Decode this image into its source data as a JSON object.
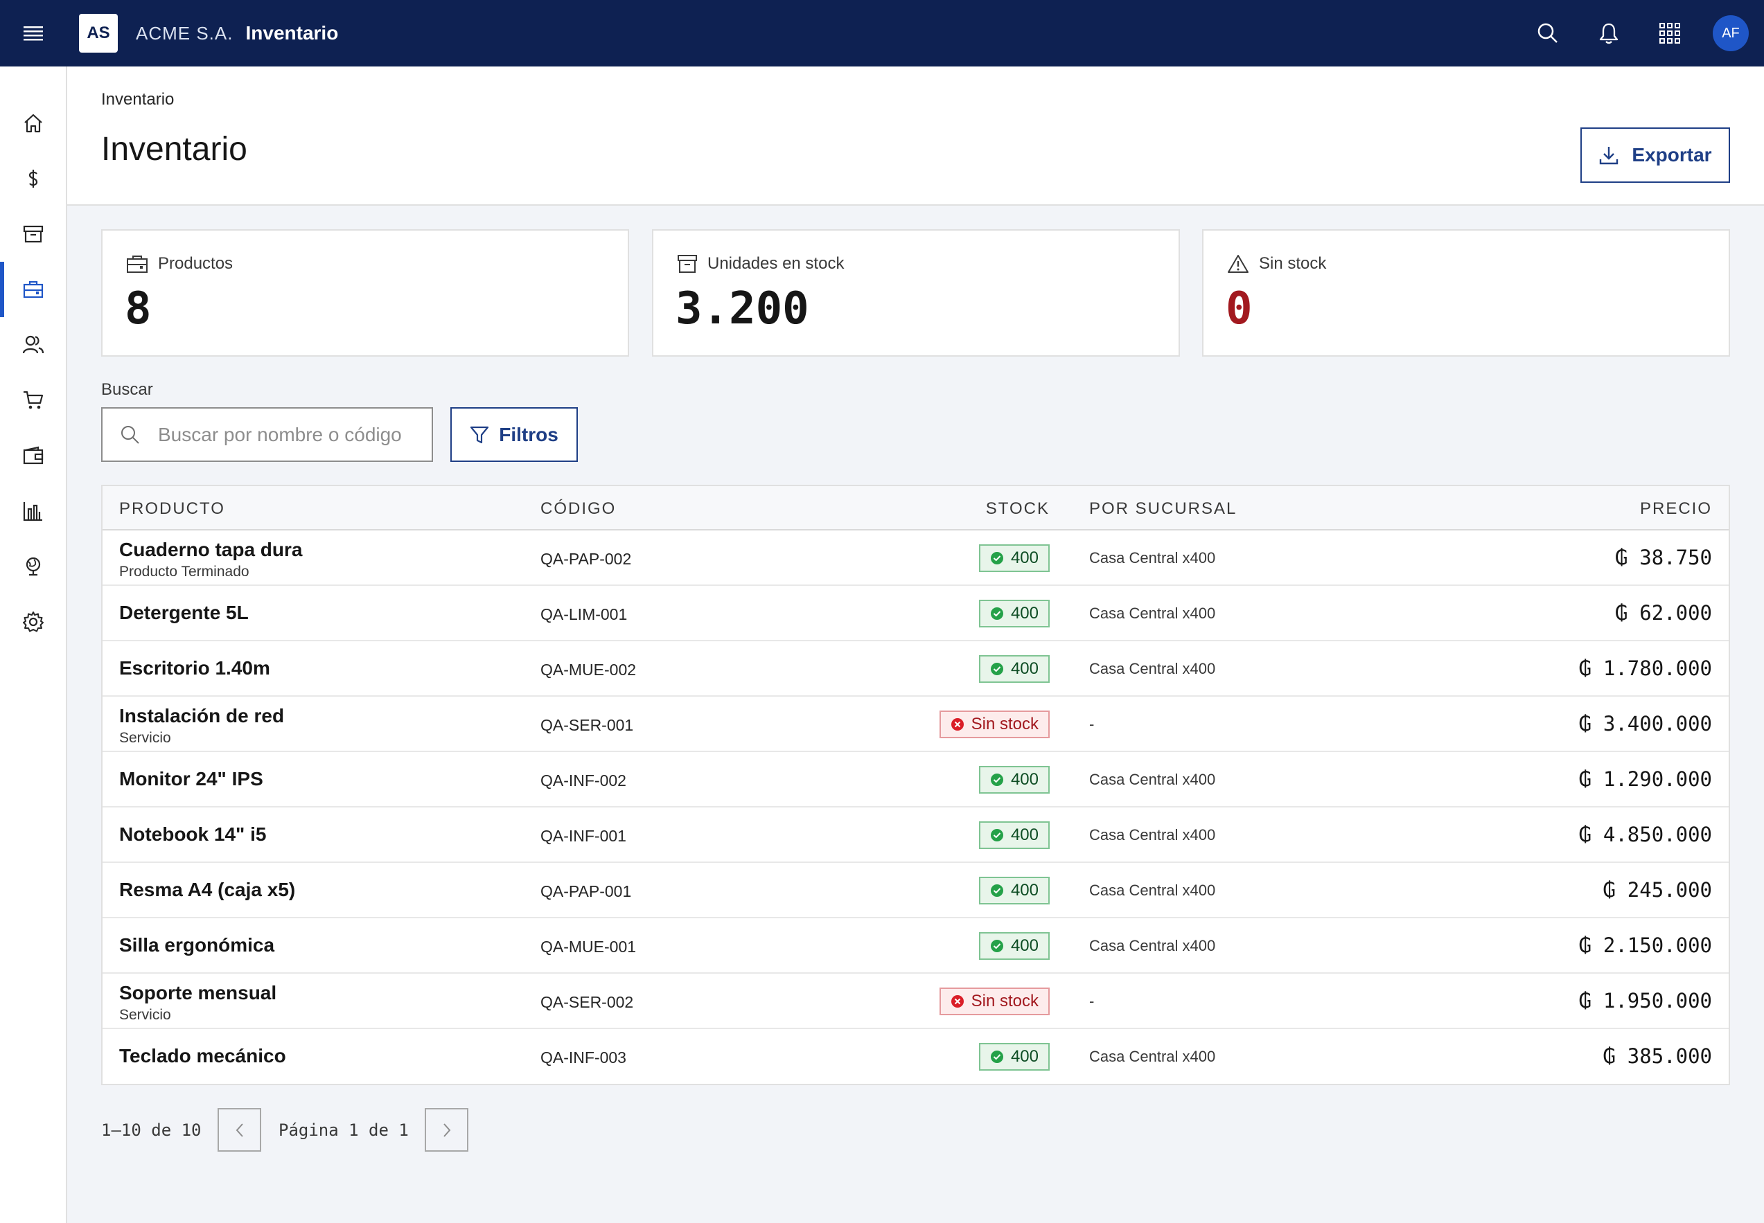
{
  "header": {
    "logo": "AS",
    "company": "ACME S.A.",
    "app": "Inventario",
    "user_initials": "AF"
  },
  "icons": {
    "menu": "menu-icon",
    "search": "search-icon",
    "notifications": "bell-icon",
    "apps": "grid-icon",
    "rail": [
      "home-icon",
      "dollar-icon",
      "archive-icon",
      "briefcase-icon",
      "users-icon",
      "cart-icon",
      "wallet-icon",
      "bar-chart-icon",
      "globe-icon",
      "gear-icon"
    ]
  },
  "page": {
    "breadcrumb": "Inventario",
    "title": "Inventario",
    "export_label": "Exportar"
  },
  "kpis": [
    {
      "label": "Productos",
      "value": "8",
      "icon": "briefcase-icon"
    },
    {
      "label": "Unidades en stock",
      "value": "3.200",
      "icon": "archive-icon"
    },
    {
      "label": "Sin stock",
      "value": "0",
      "icon": "warning-icon",
      "color": "#a2191f"
    }
  ],
  "search": {
    "label": "Buscar",
    "placeholder": "Buscar por nombre o código",
    "filter_label": "Filtros"
  },
  "table": {
    "columns": [
      "PRODUCTO",
      "CÓDIGO",
      "STOCK",
      "POR SUCURSAL",
      "PRECIO"
    ],
    "rows": [
      {
        "name": "Cuaderno tapa dura",
        "sub": "Producto Terminado",
        "code": "QA-PAP-002",
        "stock": "400",
        "status": "ok",
        "branch": "Casa Central x400",
        "price": "₲ 38.750"
      },
      {
        "name": "Detergente 5L",
        "sub": "",
        "code": "QA-LIM-001",
        "stock": "400",
        "status": "ok",
        "branch": "Casa Central x400",
        "price": "₲ 62.000"
      },
      {
        "name": "Escritorio 1.40m",
        "sub": "",
        "code": "QA-MUE-002",
        "stock": "400",
        "status": "ok",
        "branch": "Casa Central x400",
        "price": "₲ 1.780.000"
      },
      {
        "name": "Instalación de red",
        "sub": "Servicio",
        "code": "QA-SER-001",
        "stock": "Sin stock",
        "status": "no",
        "branch": "-",
        "price": "₲ 3.400.000"
      },
      {
        "name": "Monitor 24\" IPS",
        "sub": "",
        "code": "QA-INF-002",
        "stock": "400",
        "status": "ok",
        "branch": "Casa Central x400",
        "price": "₲ 1.290.000"
      },
      {
        "name": "Notebook 14\" i5",
        "sub": "",
        "code": "QA-INF-001",
        "stock": "400",
        "status": "ok",
        "branch": "Casa Central x400",
        "price": "₲ 4.850.000"
      },
      {
        "name": "Resma A4 (caja x5)",
        "sub": "",
        "code": "QA-PAP-001",
        "stock": "400",
        "status": "ok",
        "branch": "Casa Central x400",
        "price": "₲ 245.000"
      },
      {
        "name": "Silla ergonómica",
        "sub": "",
        "code": "QA-MUE-001",
        "stock": "400",
        "status": "ok",
        "branch": "Casa Central x400",
        "price": "₲ 2.150.000"
      },
      {
        "name": "Soporte mensual",
        "sub": "Servicio",
        "code": "QA-SER-002",
        "stock": "Sin stock",
        "status": "no",
        "branch": "-",
        "price": "₲ 1.950.000"
      },
      {
        "name": "Teclado mecánico",
        "sub": "",
        "code": "QA-INF-003",
        "stock": "400",
        "status": "ok",
        "branch": "Casa Central x400",
        "price": "₲ 385.000"
      }
    ]
  },
  "pagination": {
    "range": "1–10 de 10",
    "page": "Página 1 de 1"
  }
}
